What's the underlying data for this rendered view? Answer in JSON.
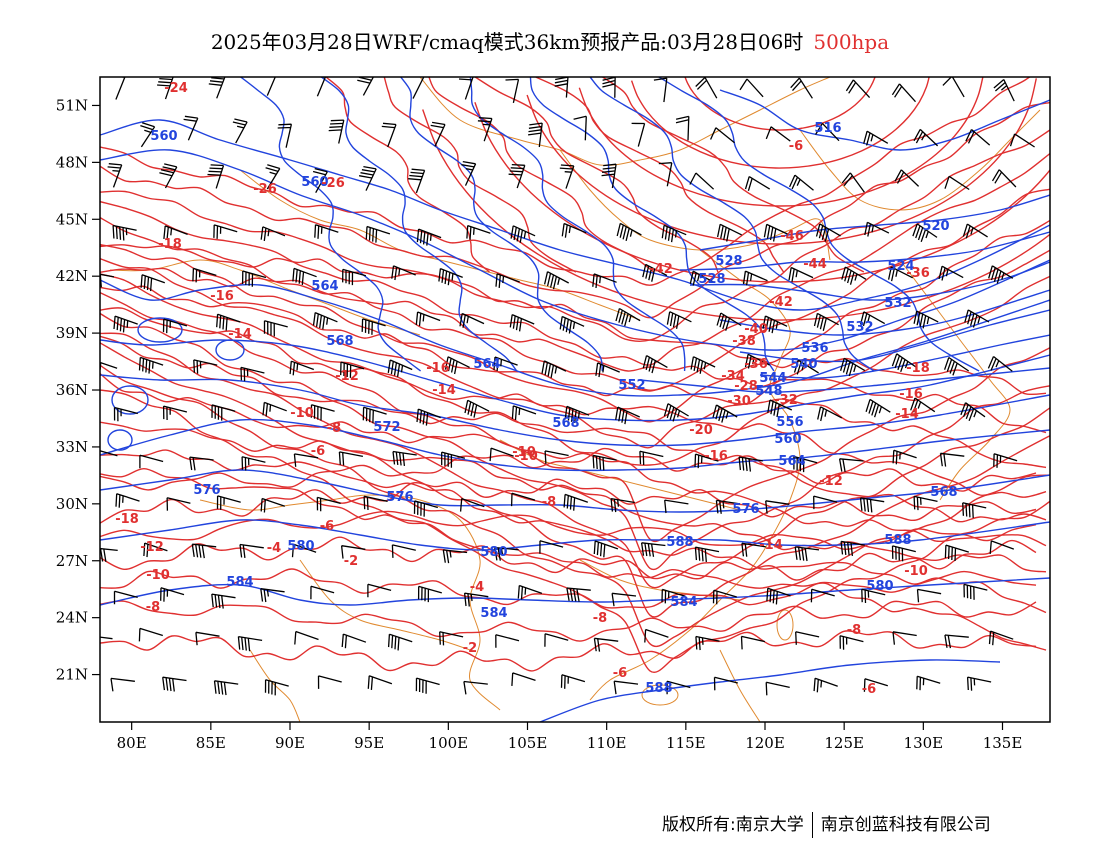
{
  "header": {
    "title": "2025年03月28日WRF/cmaq模式36km预报产品:03月28日06时",
    "level": "500hpa"
  },
  "footer": {
    "copyright_left": "版权所有:南京大学",
    "copyright_right": "南京创蓝科技有限公司"
  },
  "map": {
    "lon_range": [
      78,
      138
    ],
    "lat_range": [
      18.5,
      52.5
    ],
    "x_ticks": [
      "80E",
      "85E",
      "90E",
      "95E",
      "100E",
      "105E",
      "110E",
      "115E",
      "120E",
      "125E",
      "130E",
      "135E"
    ],
    "y_ticks": [
      "51N",
      "48N",
      "45N",
      "42N",
      "39N",
      "36N",
      "33N",
      "30N",
      "27N",
      "24N",
      "21N"
    ],
    "colors": {
      "height_contour": "#2244dd",
      "temperature_contour": "#e03030",
      "boundary": "#e08a30",
      "wind_barb": "#000000"
    },
    "height_labels": [
      "560",
      "560",
      "564",
      "568",
      "564",
      "572",
      "568",
      "576",
      "576",
      "580",
      "580",
      "584",
      "584",
      "588",
      "588",
      "516",
      "520",
      "524",
      "528",
      "528",
      "532",
      "532",
      "536",
      "540",
      "544",
      "548",
      "552",
      "556",
      "560",
      "564",
      "568",
      "576",
      "580",
      "584",
      "588"
    ],
    "temp_labels": [
      "-24",
      "-26",
      "-26",
      "-18",
      "-16",
      "-14",
      "-12",
      "-16",
      "-14",
      "-10",
      "-8",
      "-6",
      "-10",
      "-8",
      "-6",
      "-4",
      "-2",
      "-4",
      "-2",
      "-18",
      "-12",
      "-10",
      "-8",
      "-6",
      "-46",
      "-44",
      "-42",
      "-42",
      "-40",
      "-38",
      "-36",
      "-30",
      "-28",
      "-34",
      "-32",
      "-20",
      "-16",
      "-14",
      "-12",
      "-10",
      "-8",
      "-6",
      "-18",
      "-16",
      "-14",
      "-10",
      "-8",
      "-6",
      "-36"
    ]
  }
}
